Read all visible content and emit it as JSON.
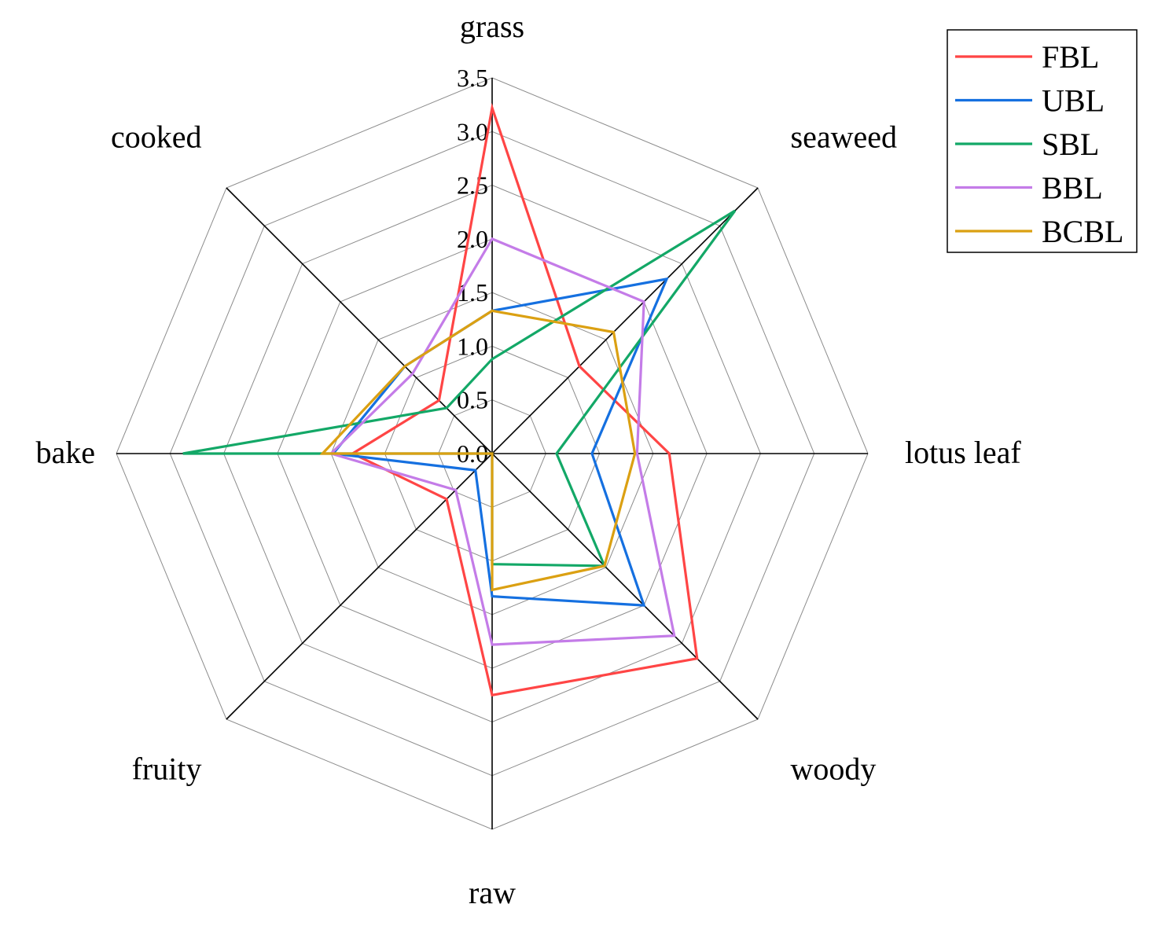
{
  "chart_data": {
    "type": "radar",
    "axes": [
      "grass",
      "seaweed",
      "lotus leaf",
      "woody",
      "raw",
      "fruity",
      "bake",
      "cooked"
    ],
    "ticks": [
      "0.0",
      "0.5",
      "1.0",
      "1.5",
      "2.0",
      "2.5",
      "3.0",
      "3.5"
    ],
    "rmax": 3.5,
    "grid": true,
    "legend_position": "top-right",
    "series": [
      {
        "name": "FBL",
        "color": "#ff4545",
        "values": [
          3.22,
          1.15,
          1.65,
          2.7,
          2.25,
          0.6,
          1.3,
          0.7
        ]
      },
      {
        "name": "UBL",
        "color": "#1570e0",
        "values": [
          1.33,
          2.3,
          0.93,
          2.0,
          1.33,
          0.22,
          1.48,
          1.15
        ]
      },
      {
        "name": "SBL",
        "color": "#13a867",
        "values": [
          0.88,
          3.2,
          0.6,
          1.48,
          1.03,
          0.0,
          2.88,
          0.6
        ]
      },
      {
        "name": "BBL",
        "color": "#c47ce8",
        "values": [
          2.0,
          2.0,
          1.35,
          2.4,
          1.78,
          0.48,
          1.5,
          1.05
        ]
      },
      {
        "name": "BCBL",
        "color": "#dba012",
        "values": [
          1.33,
          1.6,
          1.33,
          1.48,
          1.27,
          0.0,
          1.58,
          1.15
        ]
      }
    ]
  }
}
